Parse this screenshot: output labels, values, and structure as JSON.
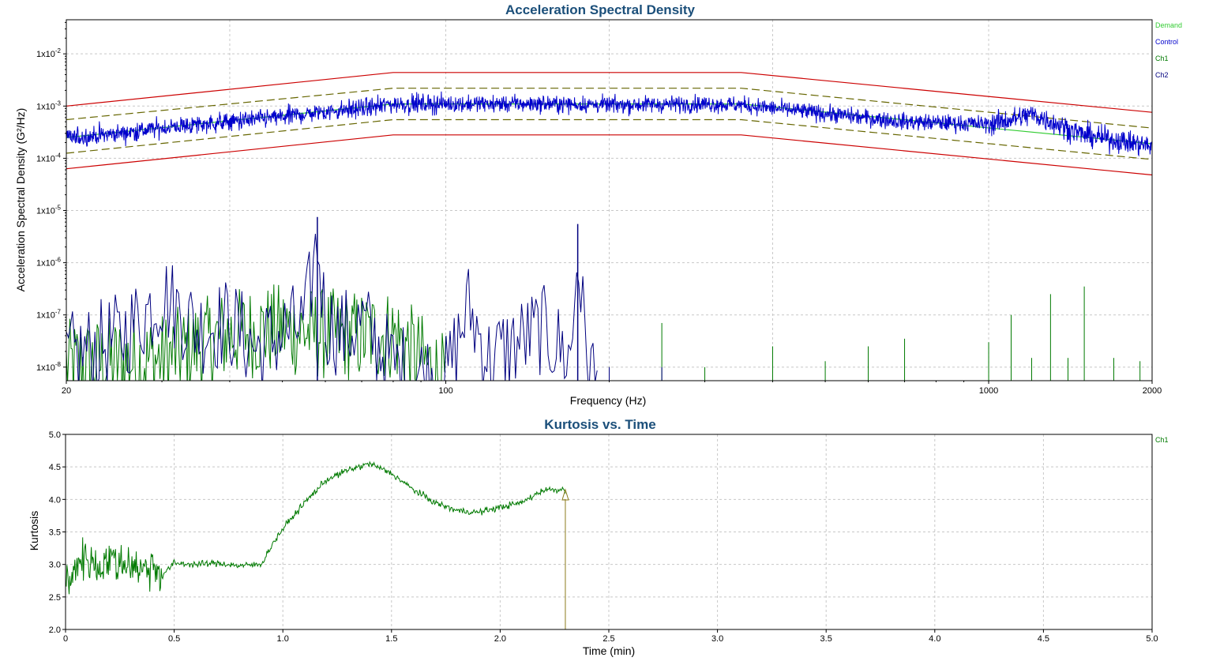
{
  "colors": {
    "demand": "#33cc33",
    "control": "#0000cc",
    "ch1": "#007a00",
    "ch2": "#00007f",
    "abort": "#cc0000",
    "alarm": "#666600",
    "kurtosis": "#007a00",
    "cursor": "#8b7a1a",
    "title": "#1b4f7a"
  },
  "chart_data": [
    {
      "type": "line",
      "title": "Acceleration Spectral Density",
      "xlabel": "Frequency (Hz)",
      "ylabel": "Acceleration Spectral Density (G²/Hz)",
      "xscale": "log",
      "yscale": "log",
      "xlim": [
        20,
        2000
      ],
      "ylim": [
        5.5e-09,
        0.045
      ],
      "grid": true,
      "legend_position": "top-right, outside plot",
      "x_ticks": [
        "20",
        "100",
        "1000",
        "2000"
      ],
      "y_ticks": [
        {
          "mant": "1x10",
          "exp": "-8",
          "value": 1e-08
        },
        {
          "mant": "1x10",
          "exp": "-7",
          "value": 1e-07
        },
        {
          "mant": "1x10",
          "exp": "-6",
          "value": 1e-06
        },
        {
          "mant": "1x10",
          "exp": "-5",
          "value": 1e-05
        },
        {
          "mant": "1x10",
          "exp": "-4",
          "value": 0.0001
        },
        {
          "mant": "1x10",
          "exp": "-3",
          "value": 0.001
        },
        {
          "mant": "1x10",
          "exp": "-2",
          "value": 0.01
        }
      ],
      "legend": [
        "Demand",
        "Control",
        "Ch1",
        "Ch2"
      ],
      "series": [
        {
          "name": "Demand",
          "x": [
            20,
            80,
            350,
            2000
          ],
          "y": [
            0.00025,
            0.0011,
            0.0011,
            0.00019
          ]
        },
        {
          "name": "Control",
          "x": [
            20,
            25,
            30,
            40,
            50,
            60,
            70,
            80,
            100,
            150,
            200,
            300,
            350,
            500,
            700,
            1000,
            1100,
            1200,
            1500,
            2000
          ],
          "y": [
            0.00024,
            0.0003,
            0.00038,
            0.0005,
            0.00062,
            0.00078,
            0.0009,
            0.0011,
            0.0011,
            0.0011,
            0.00105,
            0.0011,
            0.00105,
            0.00072,
            0.0005,
            0.00045,
            0.00055,
            0.0007,
            0.00028,
            0.00017
          ]
        },
        {
          "name": "Ch1",
          "x": [
            20,
            30,
            40,
            50,
            60,
            70,
            80,
            90,
            100,
            200,
            250,
            300,
            400,
            500,
            600,
            700,
            1000,
            1100,
            1200,
            1300,
            1400,
            1500,
            1700,
            1900
          ],
          "y": [
            3e-08,
            4e-08,
            1.2e-07,
            1.5e-07,
            1.2e-07,
            1.1e-07,
            1.2e-07,
            4e-08,
            1.5e-08,
            1e-08,
            7e-08,
            1e-08,
            2.5e-08,
            1.3e-08,
            2.5e-08,
            3.5e-08,
            3e-08,
            1e-07,
            1.5e-08,
            2.5e-07,
            1.5e-08,
            3.5e-07,
            1.5e-08,
            1.3e-08
          ]
        },
        {
          "name": "Ch2",
          "x": [
            20,
            25,
            28,
            30,
            35,
            40,
            45,
            50,
            55,
            58,
            60,
            65,
            70,
            80,
            100,
            110,
            120,
            150,
            170,
            175,
            180,
            190
          ],
          "y": [
            4e-08,
            1e-07,
            3e-07,
            7e-07,
            1.5e-07,
            2e-07,
            6e-08,
            1.3e-07,
            1.8e-07,
            7.5e-06,
            2e-07,
            1.2e-07,
            2e-07,
            3e-08,
            1.5e-08,
            4e-07,
            4e-08,
            1.5e-07,
            4e-08,
            5.5e-06,
            1e-07,
            1e-08
          ]
        },
        {
          "name": "Abort Upper",
          "x": [
            20,
            80,
            350,
            2000
          ],
          "y": [
            0.001,
            0.0044,
            0.0044,
            0.00076
          ]
        },
        {
          "name": "Abort Lower",
          "x": [
            20,
            80,
            350,
            2000
          ],
          "y": [
            6.3e-05,
            0.00028,
            0.00028,
            4.8e-05
          ]
        },
        {
          "name": "Alarm Upper",
          "x": [
            20,
            80,
            350,
            2000
          ],
          "y": [
            0.00055,
            0.0022,
            0.0022,
            0.00038
          ]
        },
        {
          "name": "Alarm Lower",
          "x": [
            20,
            80,
            350,
            2000
          ],
          "y": [
            0.000125,
            0.00055,
            0.00055,
            9.5e-05
          ]
        }
      ]
    },
    {
      "type": "line",
      "title": "Kurtosis vs. Time",
      "xlabel": "Time (min)",
      "ylabel": "Kurtosis",
      "xlim": [
        0,
        5
      ],
      "ylim": [
        2,
        5
      ],
      "grid": true,
      "legend_position": "top-right, outside plot",
      "x_ticks": [
        "0",
        "0.5",
        "1.0",
        "1.5",
        "2.0",
        "2.5",
        "3.0",
        "3.5",
        "4.0",
        "4.5",
        "5.0"
      ],
      "y_ticks": [
        "2.0",
        "2.5",
        "3.0",
        "3.5",
        "4.0",
        "4.5",
        "5.0"
      ],
      "legend": [
        "Ch1"
      ],
      "series": [
        {
          "name": "Ch1",
          "x": [
            0,
            0.02,
            0.05,
            0.1,
            0.15,
            0.2,
            0.25,
            0.3,
            0.35,
            0.4,
            0.45,
            0.5,
            0.6,
            0.7,
            0.8,
            0.9,
            0.95,
            1.0,
            1.1,
            1.2,
            1.3,
            1.4,
            1.5,
            1.6,
            1.7,
            1.8,
            1.9,
            2.0,
            2.1,
            2.2,
            2.3
          ],
          "y": [
            2.9,
            2.6,
            3.05,
            3.1,
            2.95,
            3.1,
            3.0,
            3.05,
            2.9,
            3.0,
            2.85,
            3.02,
            3.0,
            3.02,
            2.98,
            3.0,
            3.3,
            3.55,
            3.95,
            4.3,
            4.45,
            4.55,
            4.4,
            4.15,
            3.95,
            3.83,
            3.8,
            3.88,
            3.95,
            4.15,
            4.15
          ]
        }
      ],
      "cursor_x": 2.3
    }
  ]
}
